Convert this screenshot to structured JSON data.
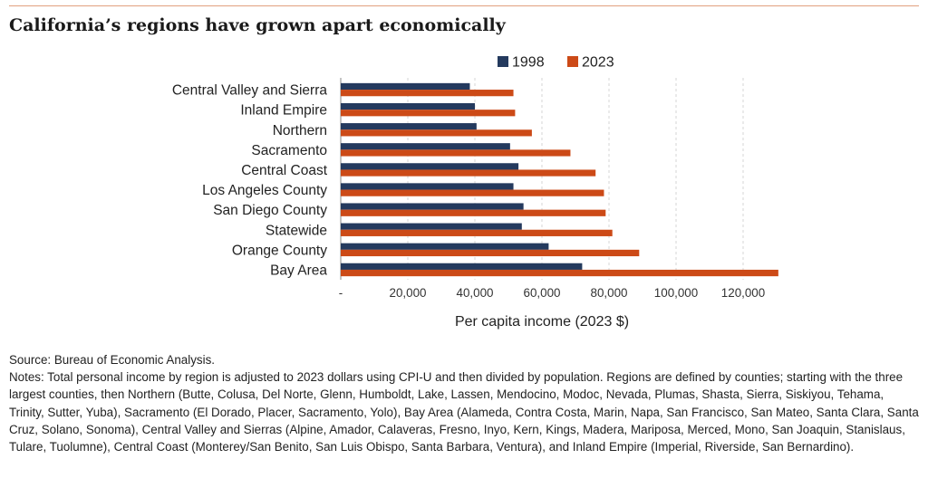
{
  "title": "California’s regions have grown apart economically",
  "source": "Source: Bureau of Economic Analysis.",
  "notes": "Notes: Total personal income by region is adjusted to 2023 dollars using CPI-U and then divided by population. Regions are defined by counties; starting with the three largest counties, then Northern (Butte, Colusa, Del Norte, Glenn, Humboldt, Lake, Lassen, Mendocino, Modoc, Nevada, Plumas, Shasta, Sierra, Siskiyou, Tehama, Trinity, Sutter, Yuba), Sacramento (El Dorado, Placer, Sacramento, Yolo), Bay Area (Alameda, Contra Costa, Marin, Napa, San Francisco, San Mateo, Santa Clara, Santa Cruz, Solano, Sonoma), Central Valley and Sierras (Alpine, Amador, Calaveras, Fresno, Inyo, Kern, Kings, Madera, Mariposa, Merced, Mono, San Joaquin, Stanislaus, Tulare, Tuolumne), Central Coast (Monterey/San Benito, San Luis Obispo, Santa Barbara, Ventura), and Inland Empire (Imperial, Riverside, San Bernardino).",
  "colors": {
    "series_1998": "#243a5e",
    "series_2023": "#cc4a17"
  },
  "chart_data": {
    "type": "bar",
    "orientation": "horizontal",
    "categories": [
      "Central Valley and Sierra",
      "Inland Empire",
      "Northern",
      "Sacramento",
      "Central Coast",
      "Los Angeles County",
      "San Diego County",
      "Statewide",
      "Orange County",
      "Bay Area"
    ],
    "series": [
      {
        "name": "1998",
        "values": [
          38500,
          40000,
          40500,
          50500,
          53000,
          51500,
          54500,
          54000,
          62000,
          72000
        ]
      },
      {
        "name": "2023",
        "values": [
          51500,
          52000,
          57000,
          68500,
          76000,
          78500,
          79000,
          81000,
          89000,
          130500
        ]
      }
    ],
    "xlabel": "Per capita income (2023 $)",
    "xlim": [
      0,
      130000
    ],
    "xticks": [
      0,
      20000,
      40000,
      60000,
      80000,
      100000,
      120000
    ],
    "xtick_labels": [
      "-",
      "20,000",
      "40,000",
      "60,000",
      "80,000",
      "100,000",
      "120,000"
    ],
    "grid": "vertical dashed",
    "legend": "top"
  }
}
